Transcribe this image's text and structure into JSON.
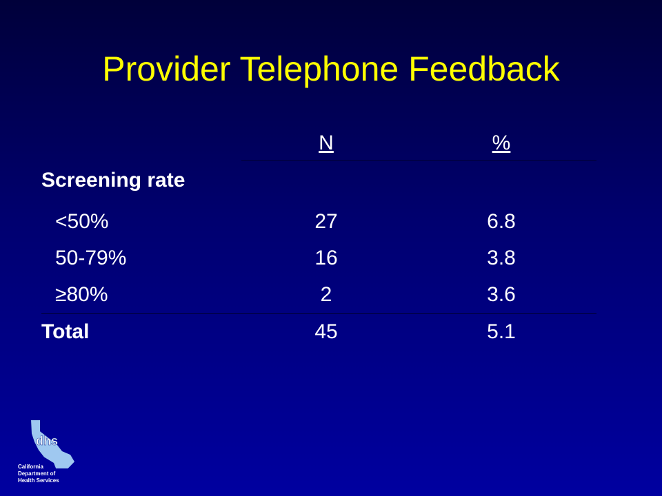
{
  "title": "Provider Telephone Feedback",
  "table": {
    "columns": {
      "n": "N",
      "pct": "%"
    },
    "section": "Screening rate",
    "rows": [
      {
        "label": "<50%",
        "n": 27,
        "pct": 6.8
      },
      {
        "label": "50-79%",
        "n": 16,
        "pct": 3.8
      },
      {
        "label": "≥80%",
        "n": 2,
        "pct": 3.6
      }
    ],
    "total": {
      "label": "Total",
      "n": 45,
      "pct": 5.1
    }
  },
  "logo": {
    "mark": "dhs",
    "lines": [
      "California",
      "Department of",
      "Health Services"
    ]
  }
}
